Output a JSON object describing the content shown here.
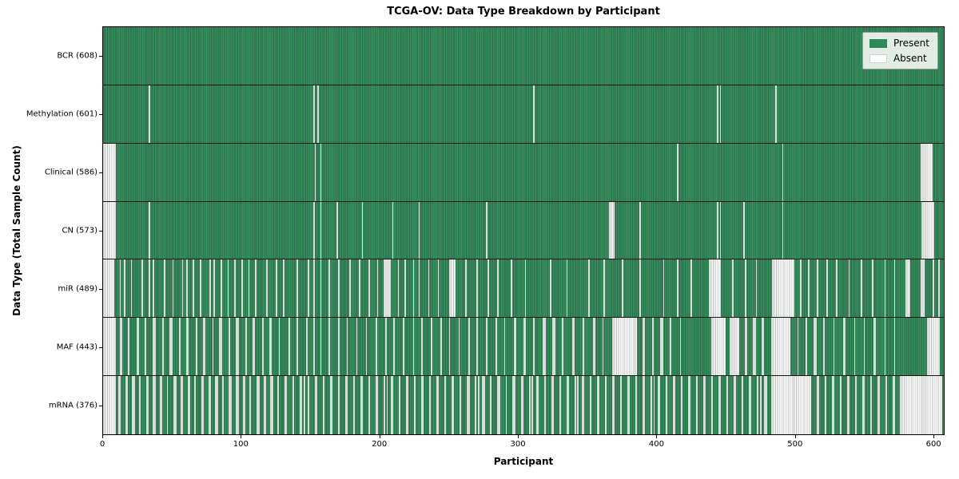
{
  "colors": {
    "present_light": "#38905e",
    "present_dark": "#2a6a48",
    "absent_face": "#fcfcfc",
    "absent_edge": "#b9beb9",
    "legend_present": "#2e8b57"
  },
  "chart_data": {
    "type": "heatmap",
    "title": "TCGA-OV: Data Type Breakdown by Participant",
    "xlabel": "Participant",
    "ylabel": "Data Type (Total Sample Count)",
    "legend": {
      "present": "Present",
      "absent": "Absent"
    },
    "legend_position": "upper right",
    "n_participants": 608,
    "x_ticks": [
      0,
      100,
      200,
      300,
      400,
      500,
      600
    ],
    "xlim": [
      0,
      608
    ],
    "grid": false,
    "rows": [
      {
        "label": "BCR (608)",
        "data_type": "BCR",
        "present_count": 608,
        "absent_count": 0,
        "absent_ranges": []
      },
      {
        "label": "Methylation (601)",
        "data_type": "Methylation",
        "present_count": 601,
        "absent_count": 7,
        "absent_ranges": [
          [
            33,
            34
          ],
          [
            152,
            153
          ],
          [
            155,
            156
          ],
          [
            311,
            312
          ],
          [
            444,
            445
          ],
          [
            446,
            447
          ],
          [
            486,
            487
          ]
        ]
      },
      {
        "label": "Clinical (586)",
        "data_type": "Clinical",
        "present_count": 586,
        "absent_count": 22,
        "absent_ranges": [
          [
            0,
            9
          ],
          [
            153,
            154
          ],
          [
            157,
            158
          ],
          [
            415,
            416
          ],
          [
            491,
            492
          ],
          [
            591,
            600
          ]
        ]
      },
      {
        "label": "CN (573)",
        "data_type": "CN",
        "present_count": 573,
        "absent_count": 35,
        "absent_ranges": [
          [
            0,
            9
          ],
          [
            33,
            34
          ],
          [
            152,
            153
          ],
          [
            157,
            158
          ],
          [
            169,
            170
          ],
          [
            187,
            188
          ],
          [
            209,
            210
          ],
          [
            228,
            229
          ],
          [
            277,
            278
          ],
          [
            366,
            370
          ],
          [
            388,
            389
          ],
          [
            444,
            445
          ],
          [
            446,
            447
          ],
          [
            463,
            464
          ],
          [
            491,
            492
          ],
          [
            592,
            601
          ]
        ]
      },
      {
        "label": "miR (489)",
        "data_type": "miR",
        "present_count": 489,
        "absent_count": 119,
        "absent_ranges": [
          [
            0,
            8
          ],
          [
            12,
            13
          ],
          [
            15,
            16
          ],
          [
            20,
            21
          ],
          [
            28,
            29
          ],
          [
            33,
            34
          ],
          [
            36,
            37
          ],
          [
            44,
            45
          ],
          [
            50,
            51
          ],
          [
            57,
            58
          ],
          [
            60,
            61
          ],
          [
            65,
            66
          ],
          [
            70,
            71
          ],
          [
            77,
            78
          ],
          [
            80,
            81
          ],
          [
            85,
            86
          ],
          [
            90,
            91
          ],
          [
            95,
            96
          ],
          [
            100,
            101
          ],
          [
            105,
            106
          ],
          [
            110,
            111
          ],
          [
            118,
            119
          ],
          [
            125,
            126
          ],
          [
            130,
            131
          ],
          [
            140,
            141
          ],
          [
            148,
            149
          ],
          [
            152,
            153
          ],
          [
            157,
            158
          ],
          [
            163,
            164
          ],
          [
            170,
            171
          ],
          [
            178,
            179
          ],
          [
            185,
            186
          ],
          [
            192,
            193
          ],
          [
            198,
            199
          ],
          [
            203,
            208
          ],
          [
            213,
            214
          ],
          [
            218,
            219
          ],
          [
            224,
            225
          ],
          [
            228,
            229
          ],
          [
            235,
            236
          ],
          [
            242,
            243
          ],
          [
            250,
            255
          ],
          [
            262,
            263
          ],
          [
            270,
            271
          ],
          [
            278,
            279
          ],
          [
            285,
            286
          ],
          [
            295,
            296
          ],
          [
            305,
            306
          ],
          [
            323,
            324
          ],
          [
            335,
            336
          ],
          [
            351,
            352
          ],
          [
            362,
            363
          ],
          [
            375,
            376
          ],
          [
            388,
            389
          ],
          [
            405,
            406
          ],
          [
            415,
            416
          ],
          [
            425,
            426
          ],
          [
            438,
            447
          ],
          [
            455,
            456
          ],
          [
            464,
            465
          ],
          [
            472,
            473
          ],
          [
            484,
            500
          ],
          [
            504,
            505
          ],
          [
            510,
            511
          ],
          [
            516,
            517
          ],
          [
            523,
            524
          ],
          [
            530,
            531
          ],
          [
            539,
            540
          ],
          [
            548,
            549
          ],
          [
            556,
            557
          ],
          [
            565,
            566
          ],
          [
            572,
            573
          ],
          [
            580,
            584
          ],
          [
            591,
            594
          ],
          [
            600,
            601
          ],
          [
            604,
            605
          ]
        ]
      },
      {
        "label": "MAF (443)",
        "data_type": "MAF",
        "present_count": 443,
        "absent_count": 165,
        "absent_ranges": [
          [
            0,
            9
          ],
          [
            12,
            14
          ],
          [
            18,
            19
          ],
          [
            24,
            26
          ],
          [
            30,
            31
          ],
          [
            36,
            38
          ],
          [
            43,
            44
          ],
          [
            48,
            50
          ],
          [
            55,
            56
          ],
          [
            60,
            62
          ],
          [
            67,
            68
          ],
          [
            72,
            74
          ],
          [
            79,
            80
          ],
          [
            84,
            86
          ],
          [
            91,
            92
          ],
          [
            96,
            98
          ],
          [
            103,
            104
          ],
          [
            108,
            110
          ],
          [
            115,
            116
          ],
          [
            120,
            122
          ],
          [
            127,
            128
          ],
          [
            134,
            135
          ],
          [
            140,
            141
          ],
          [
            147,
            148
          ],
          [
            152,
            153
          ],
          [
            157,
            158
          ],
          [
            163,
            164
          ],
          [
            170,
            171
          ],
          [
            176,
            177
          ],
          [
            183,
            184
          ],
          [
            190,
            191
          ],
          [
            197,
            198
          ],
          [
            204,
            205
          ],
          [
            210,
            211
          ],
          [
            217,
            218
          ],
          [
            224,
            225
          ],
          [
            230,
            231
          ],
          [
            237,
            238
          ],
          [
            244,
            245
          ],
          [
            250,
            251
          ],
          [
            257,
            258
          ],
          [
            264,
            265
          ],
          [
            270,
            271
          ],
          [
            277,
            278
          ],
          [
            284,
            285
          ],
          [
            290,
            291
          ],
          [
            297,
            299
          ],
          [
            304,
            306
          ],
          [
            311,
            312
          ],
          [
            318,
            320
          ],
          [
            325,
            327
          ],
          [
            332,
            333
          ],
          [
            339,
            341
          ],
          [
            347,
            348
          ],
          [
            354,
            356
          ],
          [
            361,
            362
          ],
          [
            368,
            386
          ],
          [
            390,
            392
          ],
          [
            397,
            398
          ],
          [
            403,
            405
          ],
          [
            410,
            411
          ],
          [
            417,
            418
          ],
          [
            440,
            450
          ],
          [
            453,
            460
          ],
          [
            464,
            466
          ],
          [
            470,
            472
          ],
          [
            476,
            478
          ],
          [
            483,
            497
          ],
          [
            502,
            503
          ],
          [
            508,
            509
          ],
          [
            514,
            516
          ],
          [
            521,
            522
          ],
          [
            528,
            529
          ],
          [
            535,
            537
          ],
          [
            543,
            544
          ],
          [
            550,
            551
          ],
          [
            557,
            559
          ],
          [
            565,
            566
          ],
          [
            572,
            573
          ],
          [
            596,
            605
          ]
        ]
      },
      {
        "label": "mRNA (376)",
        "data_type": "mRNA",
        "present_count": 376,
        "absent_count": 232,
        "absent_ranges": [
          [
            0,
            9
          ],
          [
            11,
            13
          ],
          [
            16,
            18
          ],
          [
            21,
            23
          ],
          [
            26,
            27
          ],
          [
            31,
            33
          ],
          [
            36,
            38
          ],
          [
            41,
            43
          ],
          [
            46,
            47
          ],
          [
            51,
            53
          ],
          [
            56,
            58
          ],
          [
            61,
            63
          ],
          [
            66,
            67
          ],
          [
            71,
            73
          ],
          [
            76,
            78
          ],
          [
            81,
            83
          ],
          [
            86,
            87
          ],
          [
            91,
            93
          ],
          [
            96,
            98
          ],
          [
            101,
            103
          ],
          [
            106,
            107
          ],
          [
            111,
            113
          ],
          [
            116,
            118
          ],
          [
            121,
            123
          ],
          [
            126,
            127
          ],
          [
            131,
            133
          ],
          [
            137,
            138
          ],
          [
            142,
            144
          ],
          [
            145,
            146
          ],
          [
            148,
            149
          ],
          [
            153,
            155
          ],
          [
            159,
            160
          ],
          [
            164,
            166
          ],
          [
            170,
            171
          ],
          [
            175,
            177
          ],
          [
            181,
            182
          ],
          [
            186,
            188
          ],
          [
            192,
            193
          ],
          [
            197,
            199
          ],
          [
            203,
            204
          ],
          [
            205,
            206
          ],
          [
            208,
            210
          ],
          [
            214,
            215
          ],
          [
            219,
            221
          ],
          [
            225,
            226
          ],
          [
            230,
            232
          ],
          [
            236,
            237
          ],
          [
            241,
            243
          ],
          [
            247,
            248
          ],
          [
            252,
            254
          ],
          [
            258,
            259
          ],
          [
            263,
            265
          ],
          [
            269,
            270
          ],
          [
            271,
            272
          ],
          [
            274,
            276
          ],
          [
            280,
            281
          ],
          [
            285,
            287
          ],
          [
            291,
            292
          ],
          [
            296,
            298
          ],
          [
            302,
            304
          ],
          [
            308,
            309
          ],
          [
            310,
            311
          ],
          [
            313,
            315
          ],
          [
            319,
            320
          ],
          [
            324,
            326
          ],
          [
            330,
            331
          ],
          [
            335,
            337
          ],
          [
            341,
            342
          ],
          [
            343,
            344
          ],
          [
            346,
            348
          ],
          [
            352,
            353
          ],
          [
            357,
            359
          ],
          [
            363,
            364
          ],
          [
            368,
            370
          ],
          [
            374,
            375
          ],
          [
            379,
            381
          ],
          [
            385,
            386
          ],
          [
            390,
            392
          ],
          [
            396,
            397
          ],
          [
            398,
            399
          ],
          [
            401,
            403
          ],
          [
            407,
            408
          ],
          [
            412,
            414
          ],
          [
            418,
            419
          ],
          [
            423,
            425
          ],
          [
            429,
            430
          ],
          [
            434,
            436
          ],
          [
            440,
            441
          ],
          [
            445,
            447
          ],
          [
            451,
            452
          ],
          [
            456,
            458
          ],
          [
            462,
            463
          ],
          [
            467,
            469
          ],
          [
            473,
            474
          ],
          [
            475,
            476
          ],
          [
            478,
            480
          ],
          [
            483,
            512
          ],
          [
            516,
            518
          ],
          [
            522,
            523
          ],
          [
            527,
            529
          ],
          [
            533,
            534
          ],
          [
            538,
            540
          ],
          [
            544,
            545
          ],
          [
            549,
            551
          ],
          [
            555,
            556
          ],
          [
            560,
            562
          ],
          [
            566,
            567
          ],
          [
            571,
            573
          ],
          [
            576,
            607
          ]
        ]
      }
    ]
  }
}
